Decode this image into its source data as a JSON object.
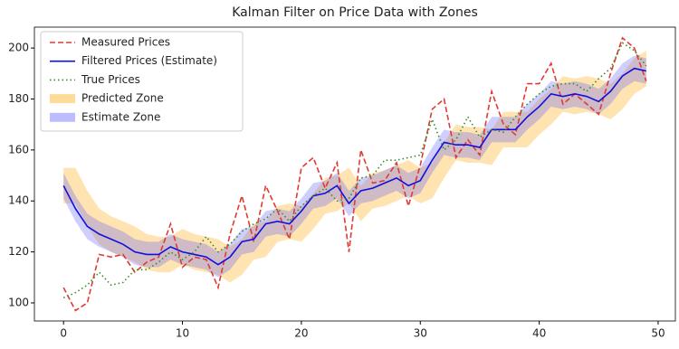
{
  "chart_data": {
    "type": "line",
    "title": "Kalman Filter on Price Data with Zones",
    "x": [
      0,
      1,
      2,
      3,
      4,
      5,
      6,
      7,
      8,
      9,
      10,
      11,
      12,
      13,
      14,
      15,
      16,
      17,
      18,
      19,
      20,
      21,
      22,
      23,
      24,
      25,
      26,
      27,
      28,
      29,
      30,
      31,
      32,
      33,
      34,
      35,
      36,
      37,
      38,
      39,
      40,
      41,
      42,
      43,
      44,
      45,
      46,
      47,
      48,
      49
    ],
    "xlim": [
      -2.45,
      51.45
    ],
    "xticks": [
      0,
      10,
      20,
      30,
      40,
      50
    ],
    "ylim": [
      92.9,
      208.2
    ],
    "yticks": [
      100,
      120,
      140,
      160,
      180,
      200
    ],
    "legend": "upper left",
    "series": [
      {
        "name": "Measured Prices",
        "color": "#e03a32",
        "dash": "dashed",
        "values": [
          106,
          97,
          100,
          119,
          118,
          119,
          112,
          116,
          118,
          131,
          114,
          118,
          117,
          106,
          127,
          142,
          124,
          146,
          136,
          125,
          153,
          157,
          145,
          155,
          120,
          160,
          147,
          148,
          155,
          138,
          154,
          176,
          180,
          157,
          164,
          158,
          183,
          170,
          166,
          186,
          186,
          194,
          178,
          182,
          178,
          174,
          190,
          204,
          200,
          187
        ]
      },
      {
        "name": "Filtered Prices (Estimate)",
        "color": "#1010e0",
        "dash": "solid",
        "values": [
          146,
          137,
          130,
          127,
          125,
          123,
          120,
          119,
          119,
          122,
          120,
          119,
          118,
          115,
          118,
          124,
          125,
          131,
          132,
          131,
          136,
          142,
          143,
          146,
          139,
          144,
          145,
          147,
          149,
          146,
          148,
          156,
          163,
          162,
          162,
          161,
          168,
          168,
          168,
          173,
          177,
          182,
          181,
          182,
          181,
          179,
          183,
          189,
          192,
          191
        ]
      },
      {
        "name": "True Prices",
        "color": "#3a8a2a",
        "dash": "dotted",
        "values": [
          102,
          104,
          107,
          112,
          107,
          108,
          113,
          113,
          116,
          120,
          117,
          120,
          126,
          120,
          123,
          128,
          131,
          133,
          137,
          132,
          138,
          142,
          145,
          140,
          141,
          149,
          150,
          156,
          156,
          157,
          158,
          172,
          160,
          164,
          173,
          165,
          168,
          167,
          173,
          178,
          182,
          185,
          186,
          186,
          183,
          188,
          192,
          202,
          199,
          193
        ]
      }
    ],
    "zones": [
      {
        "name": "Predicted Zone",
        "color": "#ffa500",
        "opacity": 0.3,
        "lower": [
          139,
          139,
          130,
          123,
          120,
          118,
          116,
          113,
          112,
          112,
          115,
          113,
          112,
          111,
          108,
          111,
          117,
          118,
          124,
          125,
          124,
          129,
          135,
          136,
          139,
          132,
          137,
          138,
          140,
          142,
          139,
          141,
          149,
          156,
          155,
          155,
          154,
          161,
          161,
          161,
          166,
          170,
          175,
          174,
          175,
          174,
          172,
          176,
          182,
          185
        ],
        "upper": [
          153,
          153,
          144,
          137,
          134,
          132,
          130,
          127,
          126,
          126,
          129,
          127,
          126,
          125,
          122,
          125,
          131,
          132,
          138,
          139,
          138,
          143,
          149,
          150,
          153,
          146,
          151,
          152,
          154,
          156,
          153,
          155,
          163,
          170,
          169,
          169,
          168,
          175,
          175,
          175,
          180,
          184,
          189,
          188,
          189,
          188,
          186,
          190,
          196,
          199
        ]
      },
      {
        "name": "Estimate Zone",
        "color": "#4040ff",
        "opacity": 0.25,
        "lower": [
          141,
          132,
          125,
          122,
          120,
          118,
          115,
          114,
          114,
          117,
          115,
          114,
          113,
          110,
          113,
          119,
          120,
          126,
          127,
          126,
          131,
          137,
          138,
          141,
          134,
          139,
          140,
          142,
          144,
          141,
          143,
          151,
          158,
          157,
          157,
          156,
          163,
          163,
          163,
          168,
          172,
          177,
          176,
          177,
          176,
          174,
          178,
          184,
          187,
          186
        ],
        "upper": [
          151,
          142,
          135,
          132,
          130,
          128,
          125,
          124,
          124,
          127,
          125,
          124,
          123,
          120,
          123,
          129,
          130,
          136,
          137,
          136,
          141,
          147,
          148,
          151,
          144,
          149,
          150,
          152,
          154,
          151,
          153,
          161,
          168,
          167,
          167,
          166,
          173,
          173,
          173,
          178,
          182,
          187,
          186,
          187,
          186,
          184,
          188,
          194,
          197,
          196
        ]
      }
    ]
  }
}
